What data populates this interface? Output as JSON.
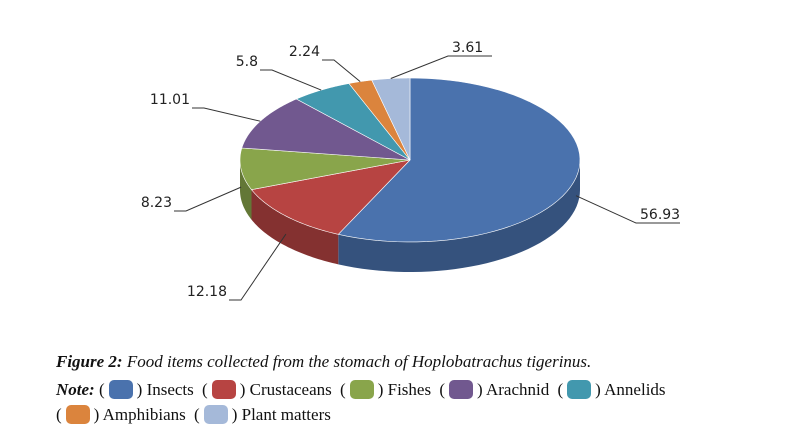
{
  "chart_data": {
    "type": "pie3d",
    "caption_label": "Figure 2:",
    "caption": "Food items collected from the stomach of Hoplobatrachus tigerinus.",
    "note_label": "Note:",
    "series": [
      {
        "name": "Insects",
        "color": "#4a72ad",
        "value": 56.93
      },
      {
        "name": "Crustaceans",
        "color": "#b74442",
        "value": 12.18
      },
      {
        "name": "Fishes",
        "color": "#89a54b",
        "value": 8.23
      },
      {
        "name": "Arachnid",
        "color": "#71588f",
        "value": 11.01
      },
      {
        "name": "Annelids",
        "color": "#4298ae",
        "value": 5.8
      },
      {
        "name": "Amphibians",
        "color": "#db843d",
        "value": 2.24
      },
      {
        "name": "Plant matters",
        "color": "#a5b9d9",
        "value": 3.61
      }
    ]
  }
}
